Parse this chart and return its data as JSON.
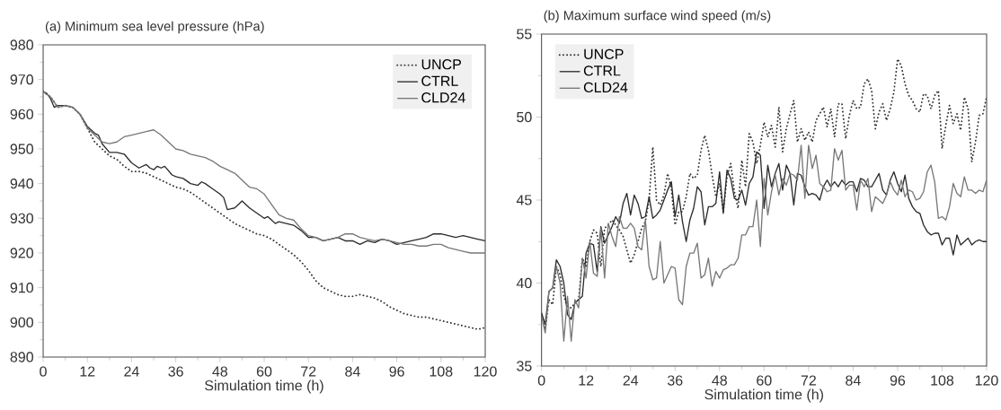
{
  "chart_data": [
    {
      "type": "line",
      "title": "(a)  Minimum sea level pressure (hPa)",
      "xlabel": "Simulation time (h)",
      "xlim": [
        0,
        120
      ],
      "ylim": [
        890,
        980
      ],
      "xticks": [
        0,
        12,
        24,
        36,
        48,
        60,
        72,
        84,
        96,
        108,
        120
      ],
      "yticks": [
        890,
        900,
        910,
        920,
        930,
        940,
        950,
        960,
        970,
        980
      ],
      "legend": "top right",
      "series": [
        {
          "name": "UNCP",
          "color": "#333333",
          "line_style": "dotted",
          "x": [
            0,
            2,
            4,
            6,
            8,
            10,
            12,
            14,
            16,
            18,
            20,
            22,
            24,
            26,
            28,
            30,
            32,
            34,
            36,
            38,
            40,
            42,
            44,
            46,
            48,
            50,
            52,
            54,
            56,
            58,
            60,
            62,
            64,
            66,
            68,
            70,
            72,
            74,
            76,
            78,
            80,
            82,
            84,
            86,
            88,
            90,
            92,
            94,
            96,
            98,
            100,
            102,
            104,
            106,
            108,
            110,
            112,
            114,
            116,
            118,
            120
          ],
          "values": [
            966.5,
            965,
            962,
            962.5,
            962,
            960,
            956,
            952,
            950,
            948,
            947,
            945,
            943.5,
            943.5,
            943,
            942,
            941,
            940,
            939,
            938.5,
            937.5,
            936,
            934.5,
            933,
            931.5,
            930,
            928.5,
            927.5,
            926.5,
            925.5,
            925,
            924,
            922.5,
            921,
            919.5,
            917.5,
            915,
            912,
            910,
            909,
            908,
            907.5,
            907.5,
            908,
            907.5,
            907,
            906,
            904.5,
            903.5,
            902.5,
            902,
            901.5,
            901.5,
            901,
            900.5,
            900,
            899.5,
            899,
            898.5,
            898,
            898.5
          ]
        },
        {
          "name": "CTRL",
          "color": "#2b2b2b",
          "line_style": "solid",
          "x": [
            0,
            1,
            2,
            3,
            4,
            6,
            8,
            10,
            12,
            14,
            15,
            16,
            18,
            20,
            22,
            24,
            26,
            28,
            29,
            30,
            31,
            32,
            33,
            35,
            36,
            38,
            40,
            42,
            43,
            44,
            46,
            48,
            49,
            50,
            52,
            54,
            56,
            58,
            60,
            61,
            62,
            63,
            64,
            66,
            68,
            70,
            72,
            74,
            76,
            78,
            80,
            82,
            84,
            86,
            88,
            90,
            92,
            94,
            96,
            98,
            100,
            102,
            104,
            106,
            108,
            110,
            112,
            114,
            116,
            118,
            120
          ],
          "values": [
            966.5,
            966,
            964.5,
            962,
            962.5,
            962.5,
            962,
            960,
            956.5,
            954.5,
            954,
            951.5,
            949,
            949,
            948.5,
            946,
            944.5,
            945.5,
            944.5,
            944,
            945,
            944.5,
            945,
            942.5,
            942,
            941.5,
            940,
            939.5,
            940.5,
            940,
            938.5,
            937,
            936,
            932.5,
            933,
            935,
            933,
            931.5,
            930,
            930.5,
            929.5,
            928.5,
            929,
            928.5,
            928,
            926.5,
            924.5,
            924.5,
            923.5,
            924,
            924.5,
            923.5,
            923.5,
            922.5,
            923.5,
            923,
            924,
            923.5,
            922.5,
            923,
            923.5,
            924,
            924.5,
            925.5,
            925.5,
            925,
            924.5,
            925,
            924.5,
            924,
            923.5
          ]
        },
        {
          "name": "CLD24",
          "color": "#777777",
          "line_style": "solid",
          "x": [
            0,
            2,
            4,
            6,
            8,
            10,
            12,
            14,
            16,
            18,
            20,
            22,
            24,
            26,
            28,
            30,
            32,
            34,
            36,
            38,
            40,
            42,
            44,
            46,
            48,
            50,
            52,
            54,
            56,
            58,
            60,
            62,
            64,
            66,
            68,
            70,
            72,
            74,
            76,
            78,
            80,
            82,
            84,
            86,
            88,
            90,
            92,
            94,
            96,
            98,
            100,
            102,
            104,
            106,
            108,
            110,
            112,
            114,
            116,
            118,
            120
          ],
          "values": [
            966.5,
            965,
            962,
            962.5,
            962,
            960,
            956,
            954,
            952,
            951.5,
            952,
            953.5,
            954,
            954.5,
            955,
            955.5,
            954,
            952,
            950,
            949.5,
            948.5,
            948,
            947.5,
            946.5,
            945,
            944,
            943,
            941,
            939,
            938.5,
            937,
            934,
            931,
            930,
            929.5,
            927,
            925,
            924.5,
            923.5,
            924,
            924.5,
            925.5,
            925.5,
            924.5,
            924,
            923.5,
            924,
            923.5,
            923,
            922.5,
            922.5,
            922,
            922,
            922.5,
            922.5,
            921.5,
            921,
            920.5,
            920,
            920,
            920
          ]
        }
      ]
    },
    {
      "type": "line",
      "title": "(b)  Maximum surface wind speed (m/s)",
      "xlabel": "Simulation time (h)",
      "xlim": [
        0,
        120
      ],
      "ylim": [
        35,
        55
      ],
      "xticks": [
        0,
        12,
        24,
        36,
        48,
        60,
        72,
        84,
        96,
        108,
        120
      ],
      "yticks": [
        35,
        40,
        45,
        50,
        55
      ],
      "legend": "top left",
      "x": [
        0,
        1,
        2,
        3,
        4,
        5,
        6,
        7,
        8,
        9,
        10,
        11,
        12,
        13,
        14,
        15,
        16,
        17,
        18,
        19,
        20,
        21,
        22,
        23,
        24,
        25,
        26,
        27,
        28,
        29,
        30,
        31,
        32,
        33,
        34,
        35,
        36,
        37,
        38,
        39,
        40,
        41,
        42,
        43,
        44,
        45,
        46,
        47,
        48,
        49,
        50,
        51,
        52,
        53,
        54,
        55,
        56,
        57,
        58,
        59,
        60,
        61,
        62,
        63,
        64,
        65,
        66,
        67,
        68,
        69,
        70,
        71,
        72,
        73,
        74,
        75,
        76,
        77,
        78,
        79,
        80,
        81,
        82,
        83,
        84,
        85,
        86,
        87,
        88,
        89,
        90,
        91,
        92,
        93,
        94,
        95,
        96,
        97,
        98,
        99,
        100,
        101,
        102,
        103,
        104,
        105,
        106,
        107,
        108,
        109,
        110,
        111,
        112,
        113,
        114,
        115,
        116,
        117,
        118,
        119,
        120
      ],
      "series": [
        {
          "name": "UNCP",
          "color": "#333333",
          "line_style": "dotted",
          "values": [
            38,
            37.2,
            39,
            38.7,
            41,
            40.5,
            39.2,
            38.6,
            38.5,
            38.8,
            39,
            41.5,
            41,
            42.5,
            43.2,
            43,
            41,
            43.3,
            43.5,
            43.8,
            43.5,
            43.2,
            42.8,
            42,
            41.2,
            41.7,
            42.5,
            43.3,
            43.7,
            45,
            48.2,
            45,
            44.7,
            45.3,
            46.6,
            45.7,
            43.5,
            44.3,
            44.3,
            45.2,
            46.6,
            46.3,
            46.5,
            48,
            48.9,
            48,
            46.5,
            45.2,
            46,
            44.3,
            46.4,
            47.2,
            45.5,
            44.5,
            47.4,
            45.8,
            49,
            48.5,
            47.2,
            48.3,
            49.7,
            48.8,
            49.5,
            48.2,
            50.6,
            47.9,
            49.3,
            50.2,
            51,
            48.5,
            49.3,
            48.6,
            49.1,
            48.5,
            49.8,
            50.2,
            50.6,
            49.4,
            50.5,
            48.8,
            50.8,
            50.8,
            48.7,
            50.1,
            51,
            50.5,
            50.6,
            52,
            52.3,
            51.6,
            49.3,
            50.3,
            50.8,
            49.8,
            50.5,
            51.5,
            53.5,
            53.1,
            52,
            51.3,
            51,
            50.5,
            50.3,
            51.4,
            51.3,
            50.5,
            51.3,
            51.6,
            48.1,
            49.5,
            50.7,
            49.6,
            50.2,
            49.2,
            51.2,
            50.5,
            47.3,
            48.5,
            50.1,
            50.2,
            51.2
          ]
        },
        {
          "name": "CTRL",
          "color": "#2b2b2b",
          "line_style": "solid",
          "values": [
            38.2,
            37.5,
            39.5,
            39.7,
            41.4,
            41,
            40,
            38.1,
            37.8,
            38.8,
            39,
            39.2,
            41.8,
            42.4,
            42.3,
            40.7,
            43.4,
            42.4,
            42.9,
            43.4,
            44,
            43.6,
            44.8,
            45.4,
            44.1,
            45.3,
            44.8,
            43.9,
            44,
            45.2,
            43.9,
            44.1,
            44.4,
            45,
            45.6,
            46.1,
            44,
            45.3,
            43.7,
            42.5,
            43.8,
            44.5,
            45.8,
            45.5,
            43.5,
            44.6,
            44.6,
            44.8,
            46.7,
            44.2,
            46.8,
            46.3,
            45.1,
            45,
            45.6,
            44.7,
            46,
            46.4,
            47.9,
            47.7,
            44.5,
            47.1,
            45.8,
            46.6,
            47.2,
            45.6,
            47.1,
            46.6,
            44.7,
            46.6,
            46.5,
            45.8,
            45.3,
            45.4,
            45.3,
            45,
            45.8,
            46.2,
            45.8,
            46.1,
            45.8,
            46.2,
            45.9,
            46.1,
            46.1,
            45.5,
            46.3,
            46.2,
            45.8,
            45.8,
            46.2,
            46.6,
            45.6,
            45.3,
            46.2,
            46.7,
            46,
            45.5,
            46.5,
            45.1,
            44.6,
            44.3,
            44.2,
            43.5,
            43.1,
            42.9,
            43,
            43,
            42.3,
            42.7,
            42.7,
            41.7,
            42.9,
            42.3,
            42.5,
            42.7,
            42.3,
            42.5,
            42.6,
            42.5,
            42.5
          ]
        },
        {
          "name": "CLD24",
          "color": "#777777",
          "line_style": "solid",
          "values": [
            38,
            37,
            39.5,
            39.7,
            41,
            40,
            36.5,
            39.2,
            36.5,
            39,
            38.5,
            41.5,
            40.3,
            42.5,
            40.6,
            40.4,
            43.3,
            40.3,
            43.6,
            42.8,
            42.2,
            44,
            43.3,
            43.3,
            43.6,
            43.3,
            42.2,
            42,
            43.8,
            41,
            40.2,
            40.3,
            42.5,
            40,
            40.5,
            41,
            40.9,
            39,
            38.7,
            41,
            41.8,
            41.8,
            42.4,
            40.3,
            40.5,
            41.5,
            39.8,
            40.7,
            40.3,
            40.8,
            40.9,
            41.1,
            41.1,
            41.5,
            42.9,
            42.9,
            43.4,
            43.4,
            45,
            42.2,
            46.3,
            44.1,
            45.5,
            46.5,
            45.3,
            46.3,
            45.9,
            46.6,
            46.5,
            46.2,
            48.3,
            45.1,
            48.3,
            46.9,
            47.7,
            46,
            45.8,
            45.5,
            45.6,
            48.1,
            47.4,
            48,
            45.6,
            45.9,
            45.9,
            44.4,
            46.2,
            45.8,
            46.3,
            44.3,
            45.2,
            45,
            44.8,
            45.3,
            46.1,
            45.6,
            45.3,
            46.2,
            45.2,
            45.6,
            45.5,
            45,
            45.1,
            45.5,
            46.7,
            47.1,
            46.1,
            43.9,
            44,
            43.8,
            44.6,
            46,
            45.4,
            45.2,
            46.4,
            45.6,
            45.6,
            45.4,
            45.6,
            45.5,
            46.2
          ]
        }
      ]
    }
  ]
}
